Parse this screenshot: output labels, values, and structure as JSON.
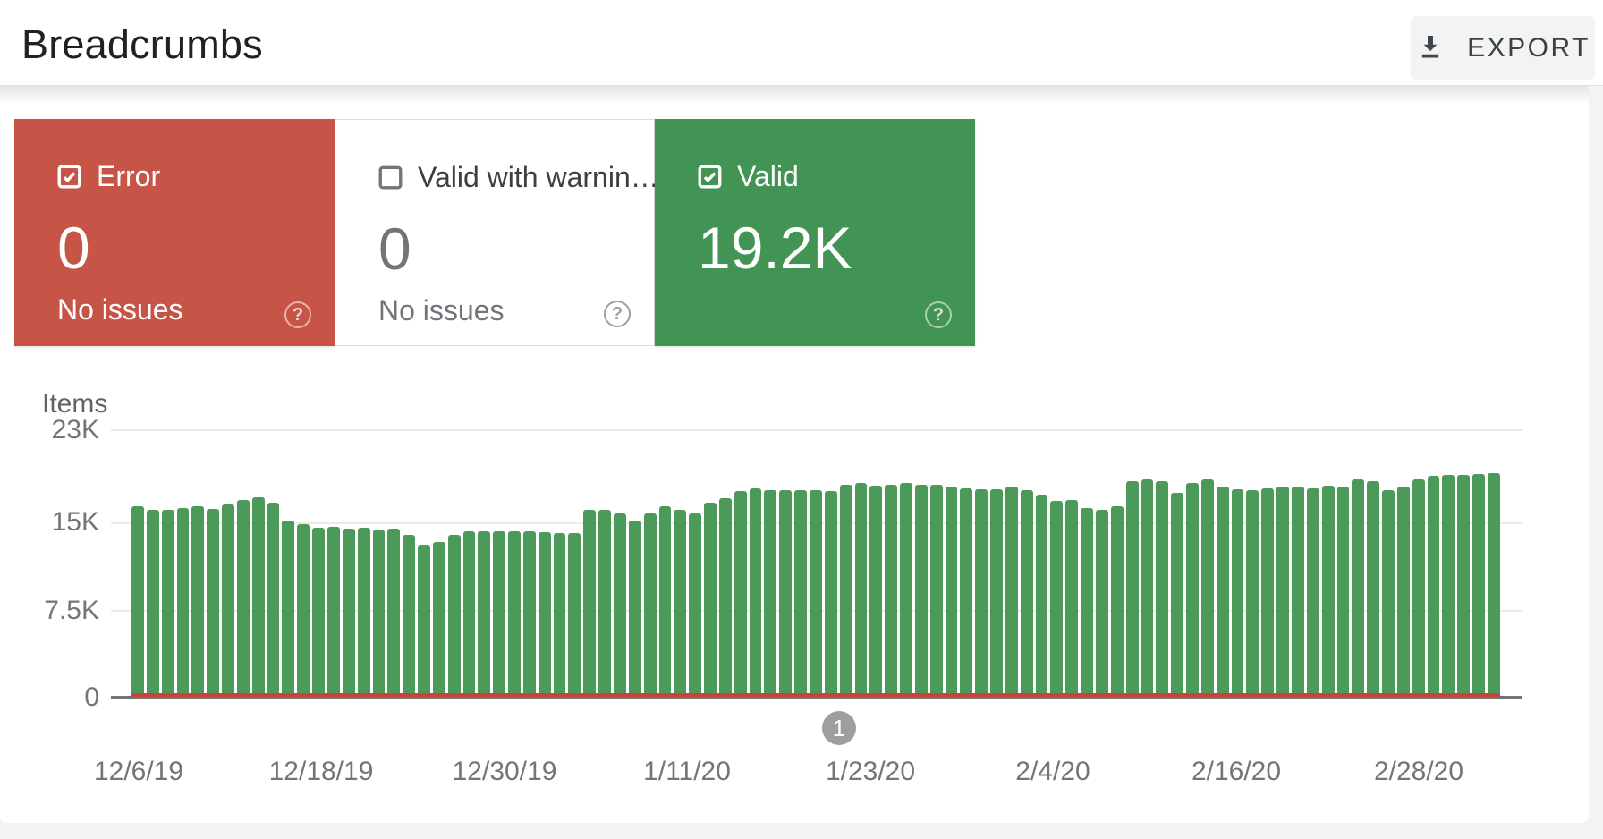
{
  "header": {
    "title": "Breadcrumbs",
    "export_label": "EXPORT"
  },
  "cards": [
    {
      "label": "Error",
      "value": "0",
      "sub": "No issues",
      "checked": true,
      "theme": "error",
      "bg": "#c75547"
    },
    {
      "label": "Valid with warnin…",
      "value": "0",
      "sub": "No issues",
      "checked": false,
      "theme": "neutral",
      "bg": "#ffffff"
    },
    {
      "label": "Valid",
      "value": "19.2K",
      "sub": "",
      "checked": true,
      "theme": "valid",
      "bg": "#419453"
    }
  ],
  "chart_data": {
    "type": "bar",
    "title": "Items",
    "ylabel": "Items",
    "ylim": [
      0,
      23000
    ],
    "y_ticks": [
      "23K",
      "15K",
      "7.5K",
      "0"
    ],
    "x_labels": [
      "12/6/19",
      "12/18/19",
      "12/30/19",
      "1/11/20",
      "1/23/20",
      "2/4/20",
      "2/16/20",
      "2/28/20"
    ],
    "grid": true,
    "legend": "none",
    "series": [
      {
        "name": "Valid",
        "color": "#4b9a59",
        "unit": "K",
        "values": [
          16.3,
          16.0,
          16.0,
          16.2,
          16.3,
          16.1,
          16.5,
          16.9,
          17.1,
          16.6,
          15.1,
          14.8,
          14.5,
          14.6,
          14.4,
          14.5,
          14.3,
          14.4,
          13.9,
          13.0,
          13.3,
          13.9,
          14.2,
          14.2,
          14.2,
          14.2,
          14.2,
          14.1,
          14.0,
          14.0,
          16.0,
          16.0,
          15.7,
          15.1,
          15.7,
          16.3,
          16.0,
          15.7,
          16.6,
          17.0,
          17.6,
          17.9,
          17.7,
          17.7,
          17.7,
          17.7,
          17.6,
          18.2,
          18.3,
          18.1,
          18.2,
          18.3,
          18.2,
          18.2,
          18.0,
          17.9,
          17.8,
          17.8,
          18.0,
          17.7,
          17.3,
          16.8,
          16.9,
          16.2,
          16.0,
          16.3,
          18.5,
          18.6,
          18.5,
          17.5,
          18.3,
          18.6,
          18.0,
          17.8,
          17.7,
          17.9,
          18.0,
          18.0,
          17.9,
          18.1,
          18.0,
          18.6,
          18.5,
          17.7,
          18.0,
          18.6,
          18.9,
          19.0,
          19.0,
          19.1,
          19.2
        ]
      },
      {
        "name": "Error",
        "color": "#cc4437",
        "constant_value": 0
      }
    ],
    "annotations": [
      {
        "label": "1",
        "near_x_label": "1/23/20"
      }
    ]
  },
  "colors": {
    "error_red": "#c75547",
    "valid_green": "#419453",
    "bar_green": "#4b9a59",
    "error_line_red": "#cc4437",
    "page_bg": "#f1f3f4",
    "text_dark": "#202124",
    "text_gray": "#757575",
    "marker_gray": "#9e9e9e"
  }
}
